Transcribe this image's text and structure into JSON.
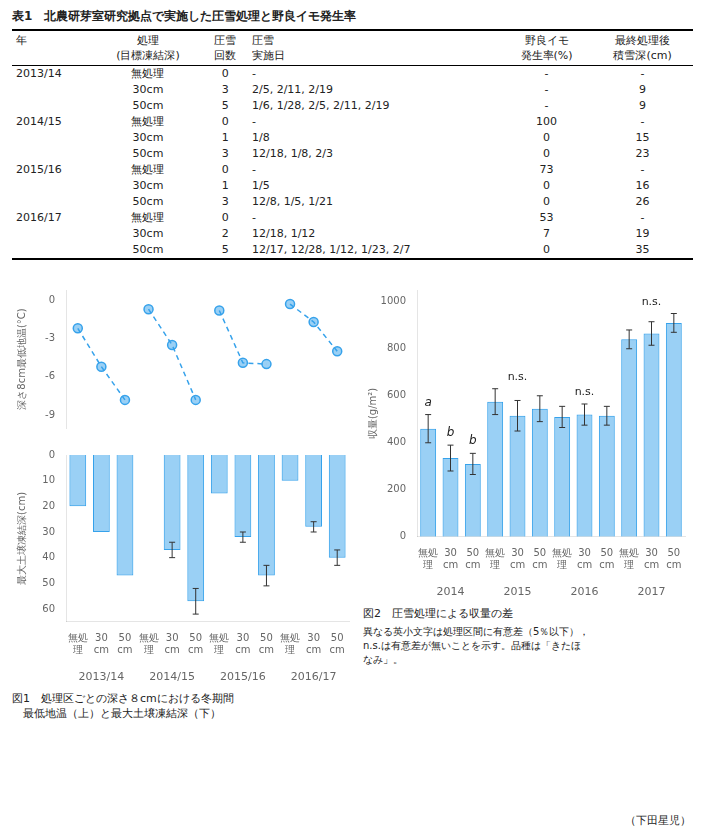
{
  "chart_data": [
    {
      "type": "table",
      "title": "表1　北農研芽室研究拠点で実施した圧雪処理と野良イモ発生率",
      "columns": [
        [
          "年"
        ],
        [
          "処理",
          "(目標凍結深)"
        ],
        [
          "圧雪",
          "回数"
        ],
        [
          "圧雪",
          "実施日"
        ],
        [
          "野良イモ",
          "発生率(%)"
        ],
        [
          "最終処理後",
          "積雪深(cm)"
        ]
      ],
      "rows": [
        [
          "2013/14",
          "無処理",
          "0",
          "-",
          "-",
          "-"
        ],
        [
          null,
          "30cm",
          "3",
          "2/5, 2/11, 2/19",
          "-",
          "9"
        ],
        [
          null,
          "50cm",
          "5",
          "1/6, 1/28, 2/5, 2/11, 2/19",
          "-",
          "9"
        ],
        [
          "2014/15",
          "無処理",
          "0",
          "-",
          "100",
          "-"
        ],
        [
          null,
          "30cm",
          "1",
          "1/8",
          "0",
          "15"
        ],
        [
          null,
          "50cm",
          "3",
          "12/18, 1/8, 2/3",
          "0",
          "23"
        ],
        [
          "2015/16",
          "無処理",
          "0",
          "-",
          "73",
          "-"
        ],
        [
          null,
          "30cm",
          "1",
          "1/5",
          "0",
          "16"
        ],
        [
          null,
          "50cm",
          "3",
          "12/8, 1/5, 1/21",
          "0",
          "26"
        ],
        [
          "2016/17",
          "無処理",
          "0",
          "-",
          "53",
          "-"
        ],
        [
          null,
          "30cm",
          "2",
          "12/18, 1/12",
          "7",
          "19"
        ],
        [
          null,
          "50cm",
          "5",
          "12/17, 12/28, 1/12, 1/23, 2/7",
          "0",
          "35"
        ]
      ]
    },
    {
      "type": "line",
      "y_label": "深さ8cm最低地温(°C)",
      "categories": [
        "無処\n理",
        "30\ncm",
        "50\ncm",
        "無処\n理",
        "30\ncm",
        "50\ncm",
        "無処\n理",
        "30\ncm",
        "50\ncm",
        "無処\n理",
        "30\ncm",
        "50\ncm"
      ],
      "groups": [
        "2013/14",
        "2014/15",
        "2015/16",
        "2016/17"
      ],
      "values": [
        -2.2,
        -5.2,
        -7.8,
        -0.7,
        -3.5,
        -7.8,
        -0.8,
        -4.9,
        -5.0,
        -0.3,
        -1.7,
        -4.0
      ],
      "line_style": "dashed",
      "marker": "circle",
      "ylim": [
        -10,
        0.8
      ],
      "yticks": [
        0,
        -3,
        -6,
        -9
      ],
      "grid": false,
      "tick_labels": "y"
    },
    {
      "type": "bar",
      "y_label": "最大土壌凍結深(cm)",
      "categories": [
        "無処\n理",
        "30\ncm",
        "50\ncm",
        "無処\n理",
        "30\ncm",
        "50\ncm",
        "無処\n理",
        "30\ncm",
        "50\ncm",
        "無処\n理",
        "30\ncm",
        "50\ncm"
      ],
      "groups": [
        "2013/14",
        "2014/15",
        "2015/16",
        "2016/17"
      ],
      "values": [
        20,
        30,
        47,
        0,
        37,
        57,
        15,
        32,
        47,
        10,
        28,
        40
      ],
      "errors": [
        null,
        0,
        0,
        null,
        3,
        5,
        null,
        2,
        4,
        null,
        2,
        3
      ],
      "ylim": [
        65,
        0
      ],
      "yticks": [
        0,
        10,
        20,
        30,
        40,
        50,
        60
      ],
      "grid": false,
      "caption": "図1　処理区ごとの深さ８cmにおける冬期間\n　最低地温（上）と最大土壌凍結深（下）"
    },
    {
      "type": "bar",
      "y_label": "収量(g/m²)",
      "categories": [
        "無処\n理",
        "30\ncm",
        "50\ncm",
        "無処\n理",
        "30\ncm",
        "50\ncm",
        "無処\n理",
        "30\ncm",
        "50\ncm",
        "無処\n理",
        "30\ncm",
        "50\ncm"
      ],
      "groups": [
        "2014",
        "2015",
        "2016",
        "2017"
      ],
      "values": [
        460,
        335,
        310,
        575,
        515,
        545,
        510,
        520,
        515,
        840,
        865,
        910
      ],
      "errors": [
        60,
        55,
        45,
        55,
        65,
        55,
        45,
        45,
        40,
        40,
        50,
        40
      ],
      "annotations": [
        "a",
        "b",
        "b",
        null,
        null,
        null,
        null,
        null,
        null,
        null,
        null,
        null
      ],
      "group_annotations": [
        null,
        "n.s.",
        "n.s.",
        "n.s."
      ],
      "ylim": [
        0,
        1050
      ],
      "yticks": [
        0,
        200,
        400,
        600,
        800,
        1000
      ],
      "grid": false,
      "caption": "図2　圧雪処理による収量の差",
      "note": "異なる英小文字は処理区間に有意差（5％以下），\nn.s.は有意差が無いことを示す。品種は「きたほ\nなみ」。"
    }
  ],
  "footer": "（下田星児）"
}
